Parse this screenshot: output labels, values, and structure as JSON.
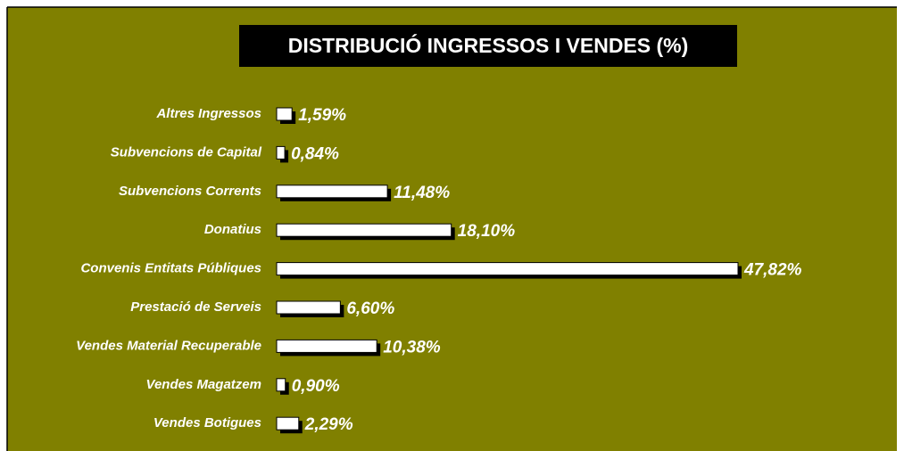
{
  "chart_data": {
    "type": "bar",
    "orientation": "horizontal",
    "title": "DISTRIBUCIÓ INGRESSOS I VENDES (%)",
    "categories": [
      "Altres Ingressos",
      "Subvencions de Capital",
      "Subvencions Corrents",
      "Donatius",
      "Convenis Entitats Públiques",
      "Prestació de Serveis",
      "Vendes Material Recuperable",
      "Vendes Magatzem",
      "Vendes Botigues"
    ],
    "values": [
      1.59,
      0.84,
      11.48,
      18.1,
      47.82,
      6.6,
      10.38,
      0.9,
      2.29
    ],
    "value_labels": [
      "1,59%",
      "0,84%",
      "11,48%",
      "18,10%",
      "47,82%",
      "6,60%",
      "10,38%",
      "0,90%",
      "2,29%"
    ],
    "color": "#ffffff"
  }
}
